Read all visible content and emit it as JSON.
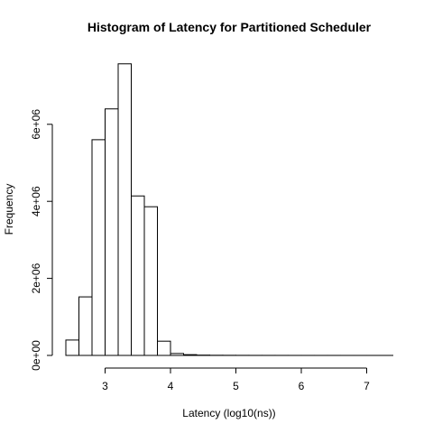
{
  "chart_data": {
    "type": "bar",
    "subtype": "histogram",
    "title": "Histogram of Latency for Partitioned Scheduler",
    "xlabel": "Latency (log10(ns))",
    "ylabel": "Frequency",
    "bin_width": 0.2,
    "bin_start": 2.4,
    "values": [
      400000,
      1520000,
      5600000,
      6400000,
      7570000,
      4140000,
      3860000,
      370000,
      50000,
      20000,
      8000,
      4000,
      3000,
      2000,
      1500,
      1200,
      1000,
      800,
      600,
      500,
      400,
      300,
      250,
      200,
      150
    ],
    "xlim": [
      2.4,
      7.4
    ],
    "ylim": [
      0,
      7600000
    ],
    "x_ticks": [
      3,
      4,
      5,
      6,
      7
    ],
    "x_tick_labels": [
      "3",
      "4",
      "5",
      "6",
      "7"
    ],
    "y_ticks": [
      0,
      2000000,
      4000000,
      6000000
    ],
    "y_tick_labels": [
      "0e+00",
      "2e+06",
      "4e+06",
      "6e+06"
    ],
    "grid": false,
    "legend": "none"
  }
}
